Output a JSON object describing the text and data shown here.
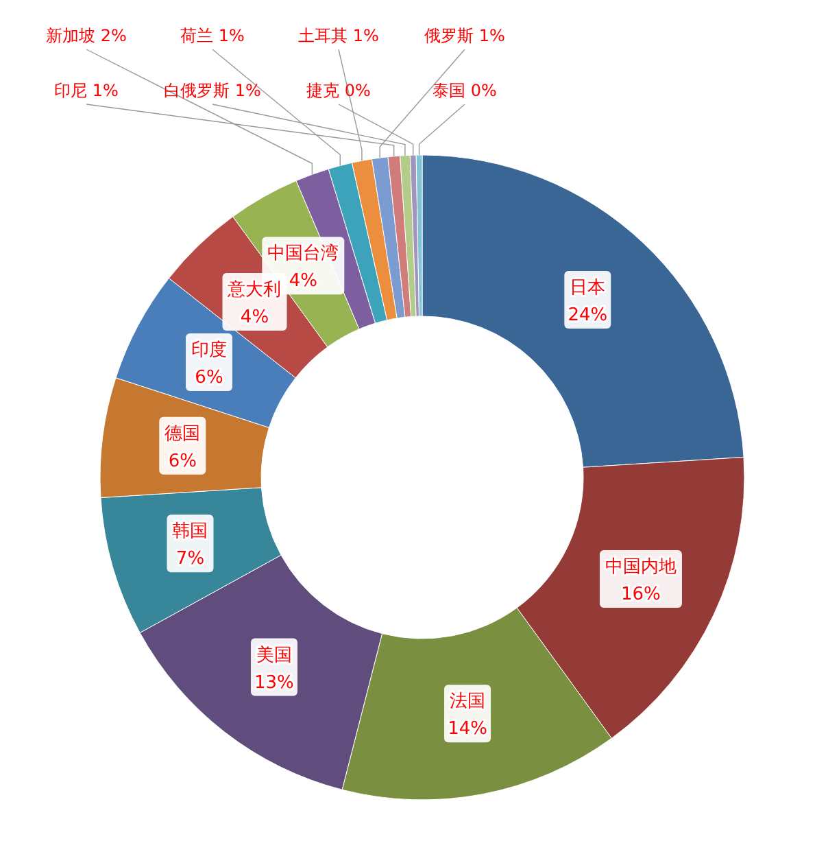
{
  "chart_data": {
    "type": "donut",
    "categories": [
      "日本",
      "中国内地",
      "法国",
      "美国",
      "韩国",
      "德国",
      "印度",
      "意大利",
      "中国台湾",
      "新加坡",
      "荷兰",
      "土耳其",
      "俄罗斯",
      "印尼",
      "白俄罗斯",
      "捷克",
      "泰国"
    ],
    "values": [
      24,
      16,
      14,
      13,
      7,
      6,
      5.6,
      4.4,
      3.6,
      1.7,
      1.2,
      1,
      0.8,
      0.6,
      0.5,
      0.3,
      0.3
    ],
    "value_labels": [
      "24%",
      "16%",
      "14%",
      "13%",
      "7%",
      "6%",
      "6%",
      "4%",
      "4%",
      "2%",
      "1%",
      "1%",
      "1%",
      "1%",
      "1%",
      "0%",
      "0%"
    ],
    "colors": [
      "#3a6696",
      "#943b38",
      "#7a9040",
      "#614c7e",
      "#37869a",
      "#c67831",
      "#4a7ebb",
      "#b84a45",
      "#98b452",
      "#7d5f9f",
      "#3da3bb",
      "#eb8f3e",
      "#7c9bd0",
      "#cf7c7a",
      "#b4cc8a",
      "#a194bd",
      "#82c3d4"
    ]
  }
}
